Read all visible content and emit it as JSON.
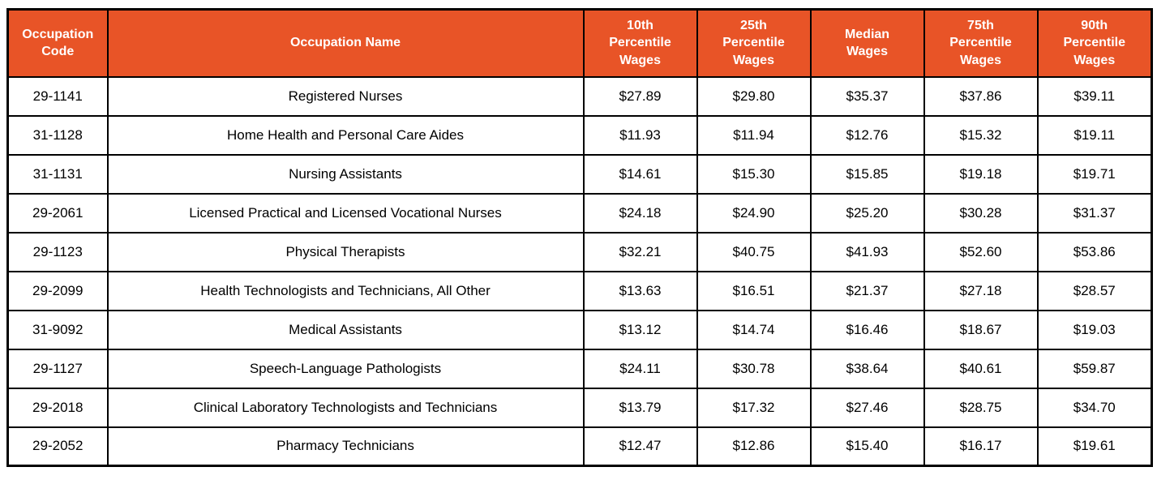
{
  "colors": {
    "header_bg": "#E85427",
    "header_text": "#FFFFFF",
    "border": "#000000",
    "cell_text": "#000000"
  },
  "chart_data": {
    "type": "table",
    "title": "",
    "columns": [
      "Occupation Code",
      "Occupation Name",
      "10th Percentile Wages",
      "25th Percentile Wages",
      "Median Wages",
      "75th Percentile Wages",
      "90th Percentile Wages"
    ],
    "rows": [
      [
        "29-1141",
        "Registered Nurses",
        "$27.89",
        "$29.80",
        "$35.37",
        "$37.86",
        "$39.11"
      ],
      [
        "31-1128",
        "Home Health and Personal Care Aides",
        "$11.93",
        "$11.94",
        "$12.76",
        "$15.32",
        "$19.11"
      ],
      [
        "31-1131",
        "Nursing Assistants",
        "$14.61",
        "$15.30",
        "$15.85",
        "$19.18",
        "$19.71"
      ],
      [
        "29-2061",
        "Licensed Practical and Licensed Vocational Nurses",
        "$24.18",
        "$24.90",
        "$25.20",
        "$30.28",
        "$31.37"
      ],
      [
        "29-1123",
        "Physical Therapists",
        "$32.21",
        "$40.75",
        "$41.93",
        "$52.60",
        "$53.86"
      ],
      [
        "29-2099",
        "Health Technologists and Technicians, All Other",
        "$13.63",
        "$16.51",
        "$21.37",
        "$27.18",
        "$28.57"
      ],
      [
        "31-9092",
        "Medical Assistants",
        "$13.12",
        "$14.74",
        "$16.46",
        "$18.67",
        "$19.03"
      ],
      [
        "29-1127",
        "Speech-Language Pathologists",
        "$24.11",
        "$30.78",
        "$38.64",
        "$40.61",
        "$59.87"
      ],
      [
        "29-2018",
        "Clinical Laboratory Technologists and Technicians",
        "$13.79",
        "$17.32",
        "$27.46",
        "$28.75",
        "$34.70"
      ],
      [
        "29-2052",
        "Pharmacy Technicians",
        "$12.47",
        "$12.86",
        "$15.40",
        "$16.17",
        "$19.61"
      ]
    ]
  }
}
